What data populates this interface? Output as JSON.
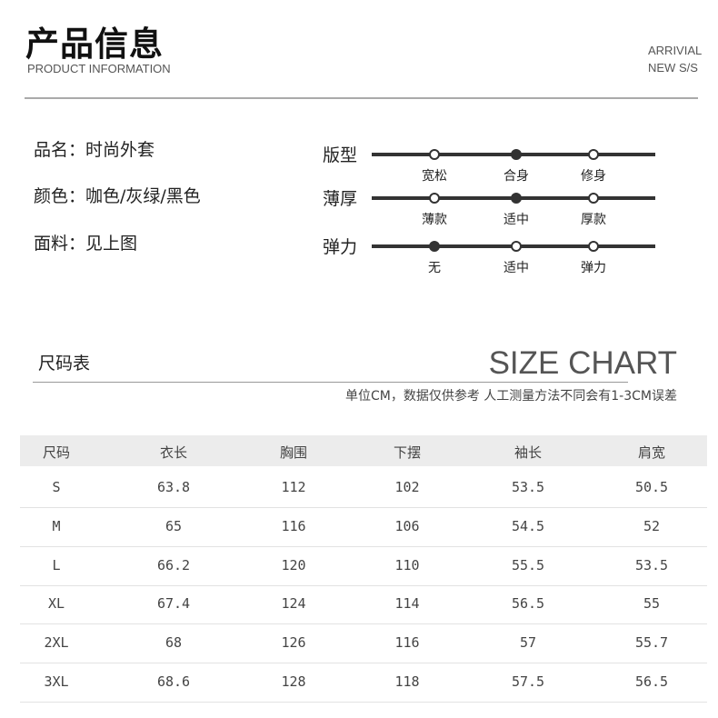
{
  "header": {
    "title": "产品信息",
    "subtitle": "PRODUCT INFORMATION",
    "arrival_line1": "ARRIVIAL",
    "arrival_line2": "NEW S/S"
  },
  "info": [
    {
      "text": "品名：时尚外套"
    },
    {
      "text": "颜色：咖色/灰绿/黑色"
    },
    {
      "text": "面料：见上图"
    }
  ],
  "scales": [
    {
      "label": "版型",
      "options": [
        "宽松",
        "合身",
        "修身"
      ],
      "selected": 1
    },
    {
      "label": "薄厚",
      "options": [
        "薄款",
        "适中",
        "厚款"
      ],
      "selected": 1
    },
    {
      "label": "弹力",
      "options": [
        "无",
        "适中",
        "弹力"
      ],
      "selected": 0
    }
  ],
  "size_chart": {
    "title_cn": "尺码表",
    "title_en": "SIZE CHART",
    "note": "单位CM，数据仅供参考 人工测量方法不同会有1-3CM误差",
    "headers": [
      "尺码",
      "衣长",
      "胸围",
      "下摆",
      "袖长",
      "肩宽"
    ],
    "rows": [
      [
        "S",
        "63.8",
        "112",
        "102",
        "53.5",
        "50.5"
      ],
      [
        "M",
        "65",
        "116",
        "106",
        "54.5",
        "52"
      ],
      [
        "L",
        "66.2",
        "120",
        "110",
        "55.5",
        "53.5"
      ],
      [
        "XL",
        "67.4",
        "124",
        "114",
        "56.5",
        "55"
      ],
      [
        "2XL",
        "68",
        "126",
        "116",
        "57",
        "55.7"
      ],
      [
        "3XL",
        "68.6",
        "128",
        "118",
        "57.5",
        "56.5"
      ]
    ]
  }
}
